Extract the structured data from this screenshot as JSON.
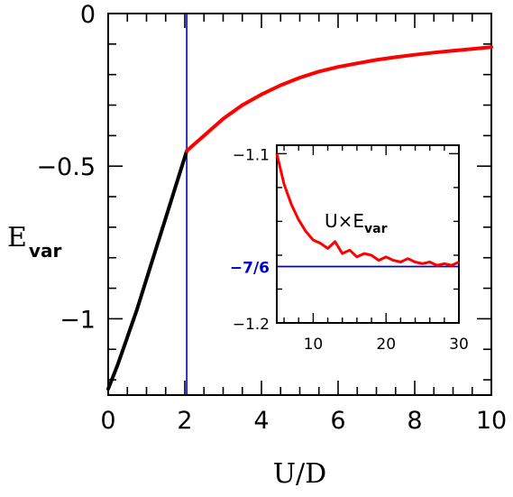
{
  "chart_data": [
    {
      "type": "line",
      "xlabel": "U/D",
      "ylabel": "E",
      "ylabel_sub": "var",
      "xlim": [
        0,
        10
      ],
      "ylim": [
        -1.25,
        0
      ],
      "xticks": [
        0,
        2,
        4,
        6,
        8,
        10
      ],
      "xtick_labels": [
        "0",
        "2",
        "4",
        "6",
        "8",
        "10"
      ],
      "yticks": [
        0,
        -0.5,
        -1
      ],
      "ytick_labels": [
        "0",
        "−0.5",
        "−1"
      ],
      "vertical_line": {
        "x": 2.05,
        "color": "#0000cc"
      },
      "series": [
        {
          "color": "#000000",
          "x": [
            0,
            0.25,
            0.5,
            0.75,
            1.0,
            1.25,
            1.5,
            1.75,
            2.05
          ],
          "y": [
            -1.23,
            -1.15,
            -1.06,
            -0.97,
            -0.87,
            -0.77,
            -0.67,
            -0.57,
            -0.45
          ]
        },
        {
          "color": "#ff0000",
          "x": [
            2.05,
            2.5,
            3,
            3.5,
            4,
            4.5,
            5,
            5.5,
            6,
            6.5,
            7,
            7.5,
            8,
            8.5,
            9,
            9.5,
            10
          ],
          "y": [
            -0.45,
            -0.4,
            -0.345,
            -0.3,
            -0.265,
            -0.235,
            -0.21,
            -0.19,
            -0.175,
            -0.163,
            -0.152,
            -0.143,
            -0.135,
            -0.128,
            -0.122,
            -0.116,
            -0.11
          ]
        }
      ]
    },
    {
      "type": "line",
      "label": "U×E",
      "label_sub": "var",
      "xlim": [
        5,
        30
      ],
      "ylim": [
        -1.2,
        -1.095
      ],
      "xticks": [
        10,
        20,
        30
      ],
      "xtick_labels": [
        "10",
        "20",
        "30"
      ],
      "yticks": [
        -1.1,
        -1.2
      ],
      "ytick_labels": [
        "−1.1",
        "−1.2"
      ],
      "reference_line": {
        "y": -1.1667,
        "label": "−7/6",
        "color": "#0000cc"
      },
      "series": [
        {
          "color": "#ff0000",
          "x": [
            5,
            6,
            7,
            8,
            9,
            10,
            11,
            12,
            13,
            14,
            15,
            16,
            17,
            18,
            19,
            20,
            21,
            22,
            23,
            24,
            25,
            26,
            27,
            28,
            29,
            30
          ],
          "y": [
            -1.1,
            -1.118,
            -1.13,
            -1.139,
            -1.146,
            -1.151,
            -1.153,
            -1.156,
            -1.152,
            -1.159,
            -1.157,
            -1.161,
            -1.159,
            -1.16,
            -1.163,
            -1.161,
            -1.163,
            -1.164,
            -1.162,
            -1.164,
            -1.165,
            -1.164,
            -1.166,
            -1.165,
            -1.166,
            -1.164
          ]
        }
      ]
    }
  ]
}
